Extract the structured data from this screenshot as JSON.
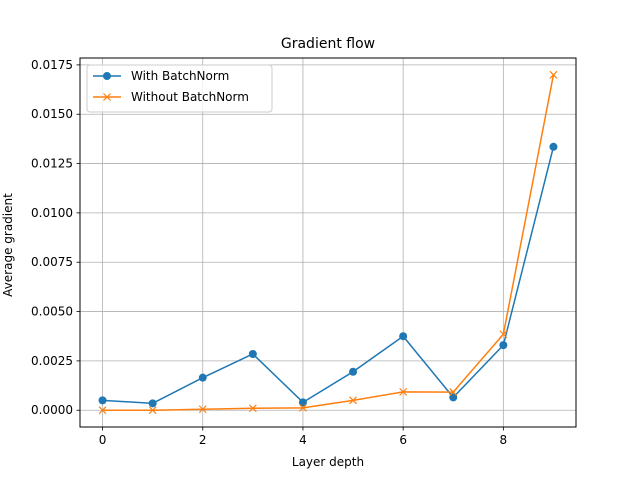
{
  "chart_data": {
    "type": "line",
    "title": "Gradient flow",
    "xlabel": "Layer depth",
    "ylabel": "Average gradient",
    "xlim": [
      -0.45,
      9.45
    ],
    "ylim": [
      -0.00085,
      0.01785
    ],
    "x_ticks": [
      0,
      2,
      4,
      6,
      8
    ],
    "x_tick_labels": [
      "0",
      "2",
      "4",
      "6",
      "8"
    ],
    "y_ticks": [
      0.0,
      0.0025,
      0.005,
      0.0075,
      0.01,
      0.0125,
      0.015,
      0.0175
    ],
    "y_tick_labels": [
      "0.0000",
      "0.0025",
      "0.0050",
      "0.0075",
      "0.0100",
      "0.0125",
      "0.0150",
      "0.0175"
    ],
    "grid": true,
    "legend_position": "top-left",
    "x": [
      0,
      1,
      2,
      3,
      4,
      5,
      6,
      7,
      8,
      9
    ],
    "series": [
      {
        "name": "With BatchNorm",
        "color": "#1f77b4",
        "marker": "circle",
        "values": [
          0.0005,
          0.00035,
          0.00165,
          0.00285,
          0.0004,
          0.00195,
          0.00375,
          0.00065,
          0.0033,
          0.01335
        ]
      },
      {
        "name": "Without BatchNorm",
        "color": "#ff7f0e",
        "marker": "x",
        "values": [
          0.0,
          0.0,
          5e-05,
          0.0001,
          0.00012,
          0.0005,
          0.00093,
          0.00092,
          0.00385,
          0.017
        ]
      }
    ]
  }
}
